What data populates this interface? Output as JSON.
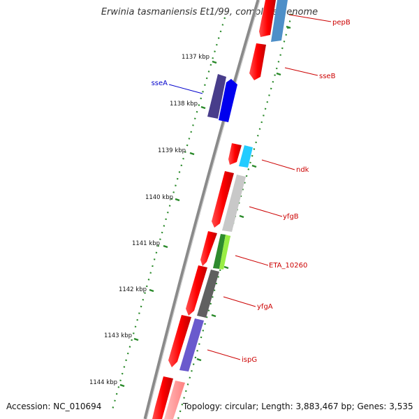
{
  "title": "Erwinia tasmaniensis Et1/99, complete genome",
  "accession": "Accession: NC_010694",
  "topology": "Topology: circular; Length: 3,883,467 bp; Genes: 3,535",
  "ticks": [
    {
      "label": "1137 kbp"
    },
    {
      "label": "1138 kbp"
    },
    {
      "label": "1139 kbp"
    },
    {
      "label": "1140 kbp"
    },
    {
      "label": "1141 kbp"
    },
    {
      "label": "1142 kbp"
    },
    {
      "label": "1143 kbp"
    },
    {
      "label": "1144 kbp"
    }
  ],
  "genes": [
    {
      "label": "pepB",
      "color": "#cc0000"
    },
    {
      "label": "sseB",
      "color": "#cc0000"
    },
    {
      "label": "sseA",
      "color": "#0000cc"
    },
    {
      "label": "ndk",
      "color": "#cc0000"
    },
    {
      "label": "yfgB",
      "color": "#cc0000"
    },
    {
      "label": "ETA_10260",
      "color": "#cc0000"
    },
    {
      "label": "yfgA",
      "color": "#cc0000"
    },
    {
      "label": "ispG",
      "color": "#cc0000"
    }
  ],
  "colors": {
    "backbone": "#8a8a8a",
    "cds": "#ff0000",
    "tick": "#2a8a2a"
  }
}
